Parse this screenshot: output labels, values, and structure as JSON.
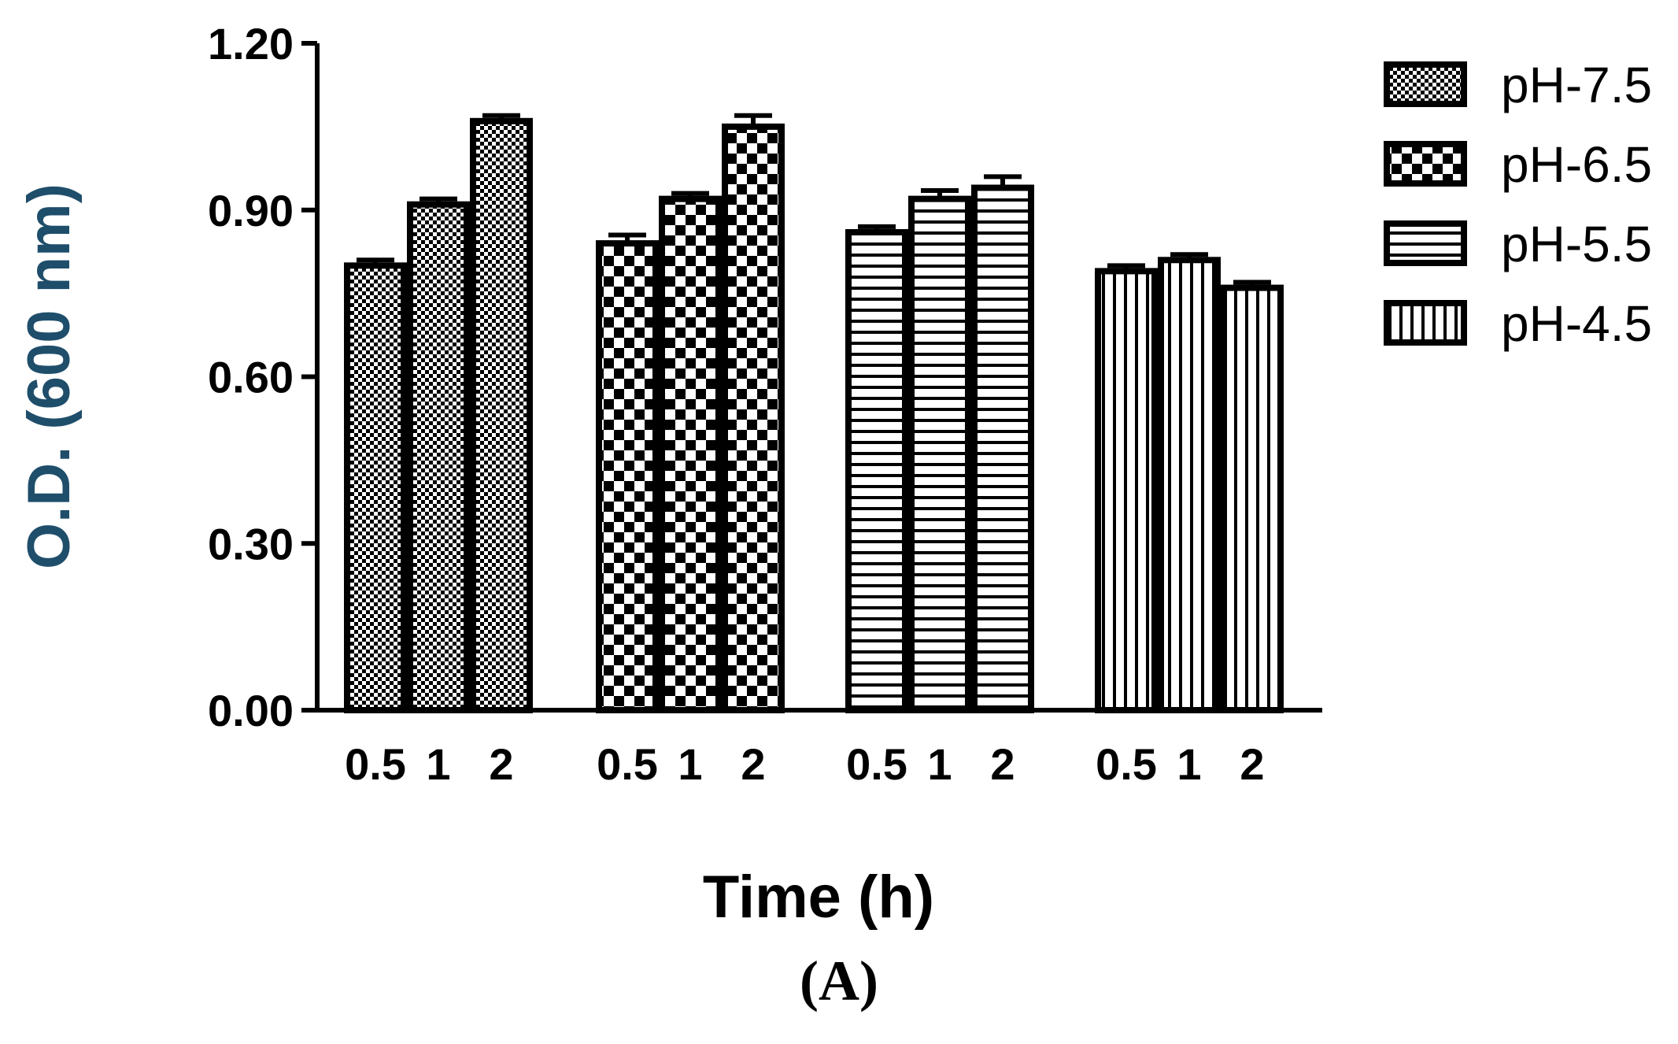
{
  "chart_data": {
    "type": "bar",
    "xlabel": "Time (h)",
    "ylabel": "O.D. (600 nm)",
    "panel_label": "(A)",
    "ylim": [
      0,
      1.2
    ],
    "yticks": [
      "0.00",
      "0.30",
      "0.60",
      "0.90",
      "1.20"
    ],
    "ytick_values": [
      0,
      0.3,
      0.6,
      0.9,
      1.2
    ],
    "categories": [
      "0.5",
      "1",
      "2"
    ],
    "legend_position": "right",
    "series": [
      {
        "name": "pH-7.5",
        "pattern": "fine-check",
        "values": [
          0.8,
          0.91,
          1.06
        ],
        "errors": [
          0.01,
          0.01,
          0.01
        ]
      },
      {
        "name": "pH-6.5",
        "pattern": "coarse-check",
        "values": [
          0.84,
          0.92,
          1.05
        ],
        "errors": [
          0.015,
          0.01,
          0.02
        ]
      },
      {
        "name": "pH-5.5",
        "pattern": "horizontal-lines",
        "values": [
          0.86,
          0.92,
          0.94
        ],
        "errors": [
          0.01,
          0.015,
          0.02
        ]
      },
      {
        "name": "pH-4.5",
        "pattern": "vertical-lines",
        "values": [
          0.79,
          0.81,
          0.76
        ],
        "errors": [
          0.01,
          0.01,
          0.01
        ]
      }
    ],
    "colors": {
      "bar_fill": "#ffffff",
      "bar_stroke": "#000000",
      "ylabel_color": "#1f4e6b",
      "xlabel_color": "#000000"
    }
  }
}
